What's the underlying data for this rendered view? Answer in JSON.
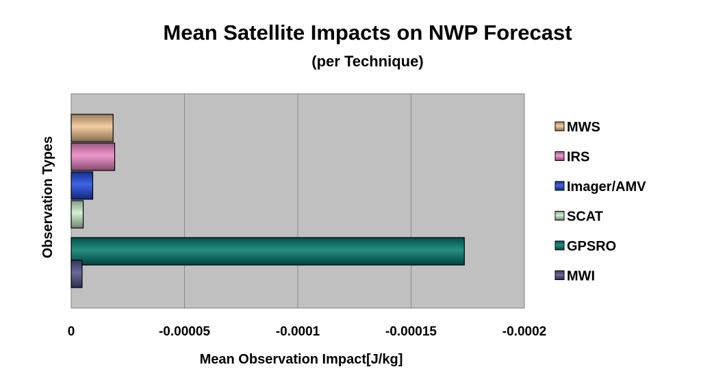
{
  "chart_data": {
    "type": "bar",
    "orientation": "horizontal",
    "title": "Mean Satellite Impacts on NWP Forecast",
    "subtitle": "(per Technique)",
    "xlabel": "Mean Observation Impact[J/kg]",
    "ylabel": "Observation Types",
    "xlim": [
      0,
      -0.0002
    ],
    "xticks": [
      0,
      -5e-05,
      -0.0001,
      -0.00015,
      -0.0002
    ],
    "xtick_labels": [
      "0",
      "-0.00005",
      "-0.0001",
      "-0.00015",
      "-0.0002"
    ],
    "grid": true,
    "legend_position": "right",
    "series": [
      {
        "name": "MWS",
        "value": -1.85e-05,
        "color": "#f2c391"
      },
      {
        "name": "IRS",
        "value": -1.92e-05,
        "color": "#ee86c7"
      },
      {
        "name": "Imager/AMV",
        "value": -9.5e-06,
        "color": "#1f49e0"
      },
      {
        "name": "SCAT",
        "value": -5.3e-06,
        "color": "#c9efc9"
      },
      {
        "name": "GPSRO",
        "value": -0.0001735,
        "color": "#007a70"
      },
      {
        "name": "MWI",
        "value": -4.8e-06,
        "color": "#52508a"
      }
    ]
  }
}
